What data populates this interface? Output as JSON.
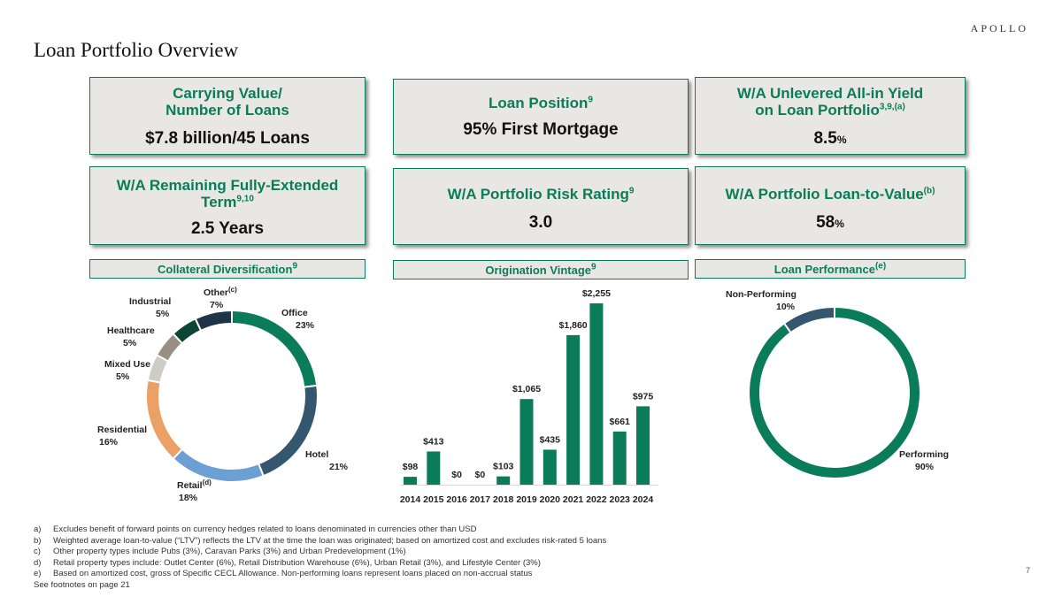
{
  "header": {
    "logo": "APOLLO",
    "title": "Loan Portfolio Overview"
  },
  "cards": {
    "carrying": {
      "line1": "Carrying Value/",
      "line2": "Number of Loans",
      "value": "$7.8 billion/45 Loans"
    },
    "position": {
      "label": "Loan Position",
      "sup": "9",
      "value": "95% First Mortgage"
    },
    "yield": {
      "line1": "W/A Unlevered All-in Yield",
      "line2": "on Loan Portfolio",
      "sup": "3,9,(a)",
      "value": "8.5",
      "unit": "%"
    },
    "term": {
      "line1": "W/A Remaining Fully-Extended",
      "line2": "Term",
      "sup": "9,10",
      "value": "2.5 Years"
    },
    "risk": {
      "label": "W/A Portfolio Risk Rating",
      "sup": "9",
      "value": "3.0"
    },
    "ltv": {
      "label": "W/A Portfolio Loan-to-Value",
      "sup": "(b)",
      "value": "58",
      "unit": "%"
    }
  },
  "sections": {
    "collateral": {
      "label": "Collateral Diversification",
      "sup": "9"
    },
    "vintage": {
      "label": "Origination Vintage",
      "sup": "9"
    },
    "performance": {
      "label": "Loan Performance",
      "sup": "(e)"
    }
  },
  "colors": {
    "green": "#0b7c5a",
    "navy": "#34566f",
    "lightblue": "#6c9fd3",
    "orange": "#eba066",
    "lightgray": "#cfcbc6",
    "gray": "#9a8f85",
    "darkgreen": "#0d4535",
    "darknavy": "#1f3447",
    "panel": "#e9e7e4"
  },
  "chart_data": [
    {
      "type": "pie",
      "donut": true,
      "categories": [
        "Office",
        "Hotel",
        "Retail",
        "Residential",
        "Mixed Use",
        "Healthcare",
        "Industrial",
        "Other"
      ],
      "values": [
        23,
        21,
        18,
        16,
        5,
        5,
        5,
        7
      ],
      "labels": [
        "23%",
        "21%",
        "18%",
        "16%",
        "5%",
        "5%",
        "5%",
        "7%"
      ],
      "label_sups": [
        "",
        "",
        "(d)",
        "",
        "",
        "",
        "",
        "(c)"
      ],
      "colors": [
        "#0b7c5a",
        "#34566f",
        "#6c9fd3",
        "#eba066",
        "#cfcbc6",
        "#9a8f85",
        "#0d4535",
        "#1f3447"
      ]
    },
    {
      "type": "bar",
      "categories": [
        "2014",
        "2015",
        "2016",
        "2017",
        "2018",
        "2019",
        "2020",
        "2021",
        "2022",
        "2023",
        "2024"
      ],
      "values": [
        98,
        413,
        0,
        0,
        103,
        1065,
        435,
        1860,
        2255,
        661,
        975
      ],
      "data_labels": [
        "$98",
        "$413",
        "$0",
        "$0",
        "$103",
        "$1,065",
        "$435",
        "$1,860",
        "$2,255",
        "$661",
        "$975"
      ],
      "ylim": [
        0,
        2255
      ],
      "color": "#0b7c5a"
    },
    {
      "type": "pie",
      "donut": true,
      "categories": [
        "Performing",
        "Non-Performing"
      ],
      "values": [
        90,
        10
      ],
      "labels": [
        "90%",
        "10%"
      ],
      "colors": [
        "#0b7c5a",
        "#34566f"
      ]
    }
  ],
  "footnotes": [
    {
      "letter": "a)",
      "text": "Excludes benefit of forward points on currency hedges related to loans denominated in currencies other than USD"
    },
    {
      "letter": "b)",
      "text": "Weighted average loan-to-value (“LTV”) reflects the LTV at the time the loan was originated; based on amortized cost and excludes risk-rated 5 loans"
    },
    {
      "letter": "c)",
      "text": "Other property types include Pubs (3%), Caravan Parks (3%) and Urban Predevelopment (1%)"
    },
    {
      "letter": "d)",
      "text": "Retail property types include: Outlet Center (6%), Retail Distribution Warehouse (6%), Urban Retail (3%), and Lifestyle Center (3%)"
    },
    {
      "letter": "e)",
      "text": "Based on amortized cost, gross of Specific CECL Allowance. Non-performing loans represent loans placed on non-accrual status"
    }
  ],
  "footnote_ref": "See footnotes on page 21",
  "page_number": "7"
}
